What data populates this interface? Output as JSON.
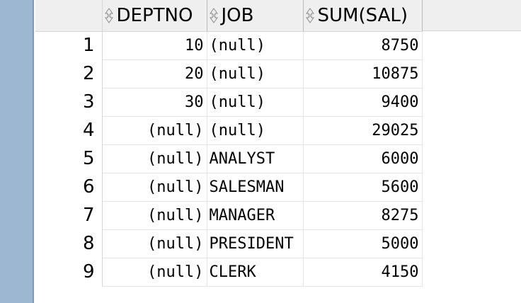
{
  "columns": [
    {
      "key": "deptno",
      "label": "DEPTNO"
    },
    {
      "key": "job",
      "label": "JOB"
    },
    {
      "key": "sum_sal",
      "label": "SUM(SAL)"
    }
  ],
  "sort_icon": "sort-updown-icon",
  "rows": [
    {
      "n": "1",
      "deptno": "10",
      "job": "(null)",
      "sum_sal": "8750"
    },
    {
      "n": "2",
      "deptno": "20",
      "job": "(null)",
      "sum_sal": "10875"
    },
    {
      "n": "3",
      "deptno": "30",
      "job": "(null)",
      "sum_sal": "9400"
    },
    {
      "n": "4",
      "deptno": "(null)",
      "job": "(null)",
      "sum_sal": "29025"
    },
    {
      "n": "5",
      "deptno": "(null)",
      "job": "ANALYST",
      "sum_sal": "6000"
    },
    {
      "n": "6",
      "deptno": "(null)",
      "job": "SALESMAN",
      "sum_sal": "5600"
    },
    {
      "n": "7",
      "deptno": "(null)",
      "job": "MANAGER",
      "sum_sal": "8275"
    },
    {
      "n": "8",
      "deptno": "(null)",
      "job": "PRESIDENT",
      "sum_sal": "5000"
    },
    {
      "n": "9",
      "deptno": "(null)",
      "job": "CLERK",
      "sum_sal": "4150"
    }
  ],
  "colors": {
    "gutter": "#9db6d2",
    "header_bg": "#efefef",
    "grid_line": "#e4e4e4"
  }
}
